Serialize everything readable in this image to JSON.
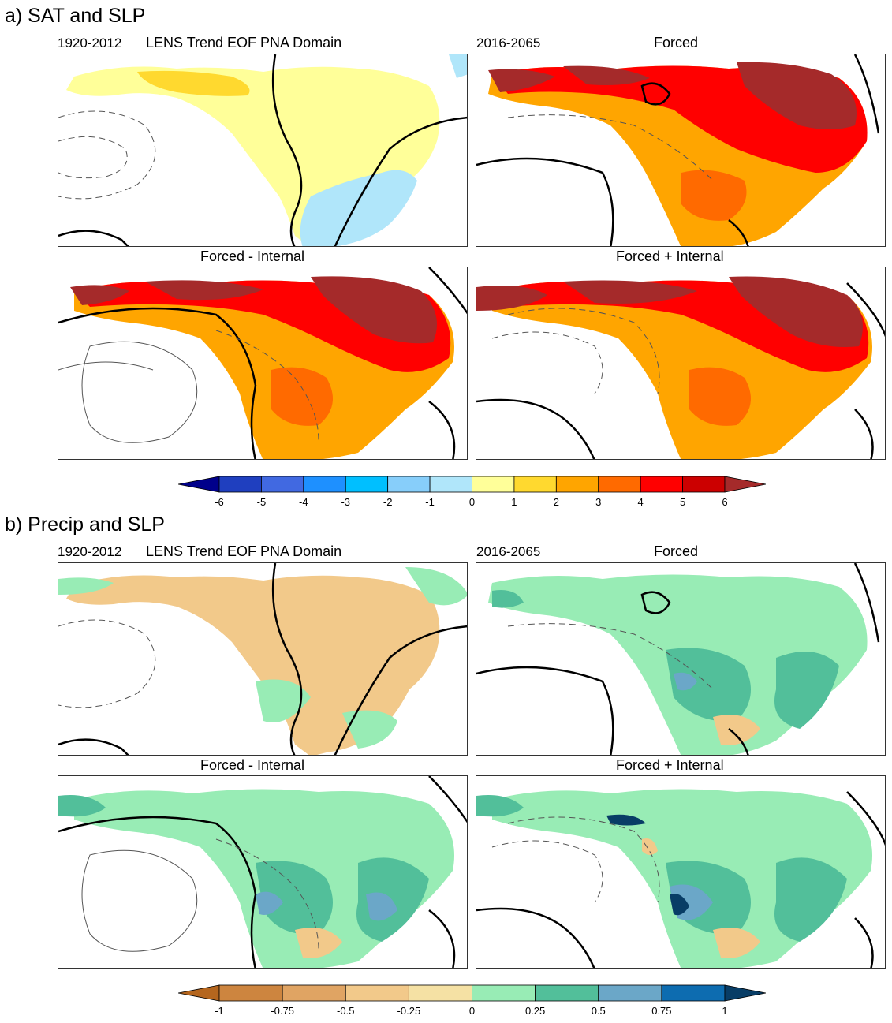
{
  "sections": {
    "a": {
      "title": "a) SAT and SLP",
      "year1": "1920-2012",
      "desc": "LENS Trend EOF PNA Domain",
      "year2": "2016-2065",
      "forced": "Forced",
      "fminus": "Forced - Internal",
      "fplus": "Forced + Internal"
    },
    "b": {
      "title": "b) Precip and SLP",
      "year1": "1920-2012",
      "desc": "LENS Trend EOF PNA Domain",
      "year2": "2016-2065",
      "forced": "Forced",
      "fminus": "Forced - Internal",
      "fplus": "Forced + Internal"
    }
  },
  "chart_data": [
    {
      "type": "heatmap",
      "title": "a) SAT and SLP",
      "panels": [
        "1920-2012 LENS Trend EOF PNA Domain",
        "2016-2065 Forced",
        "Forced - Internal",
        "Forced + Internal"
      ],
      "colorbar": {
        "ticks": [
          "-6",
          "-5",
          "-4",
          "-3",
          "-2",
          "-1",
          "0",
          "1",
          "2",
          "3",
          "4",
          "5",
          "6"
        ],
        "colors": [
          "#00008b",
          "#1f3fbf",
          "#4169e1",
          "#1e90ff",
          "#00bfff",
          "#87cefa",
          "#b0e6fa",
          "#ffff99",
          "#ffd92f",
          "#ffa500",
          "#ff6a00",
          "#ff0000",
          "#cc0000",
          "#a52a2a"
        ]
      }
    },
    {
      "type": "heatmap",
      "title": "b) Precip and SLP",
      "panels": [
        "1920-2012 LENS Trend EOF PNA Domain",
        "2016-2065 Forced",
        "Forced - Internal",
        "Forced + Internal"
      ],
      "colorbar": {
        "ticks": [
          "-1",
          "-0.75",
          "-0.5",
          "-0.25",
          "0",
          "0.25",
          "0.5",
          "0.75",
          "1"
        ],
        "colors": [
          "#b5661e",
          "#cd853f",
          "#e0a463",
          "#f2c98a",
          "#f5e1a4",
          "#98ecb5",
          "#52bf9a",
          "#6ba7c8",
          "#0d6cb0",
          "#083d66"
        ]
      }
    }
  ]
}
